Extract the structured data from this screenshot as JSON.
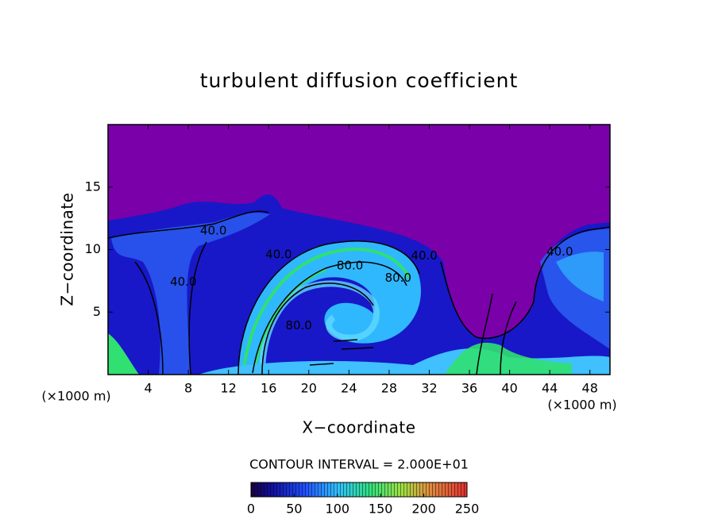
{
  "chart_data": {
    "type": "contour",
    "title": "turbulent diffusion coefficient",
    "xlabel": "X−coordinate",
    "ylabel": "Z−coordinate",
    "x_unit_left": "(×1000 m)",
    "x_unit_right": "(×1000 m)",
    "xlim": [
      0,
      50
    ],
    "ylim": [
      0,
      20
    ],
    "xticks": [
      4,
      8,
      12,
      16,
      20,
      24,
      28,
      32,
      36,
      40,
      44,
      48
    ],
    "yticks": [
      5,
      10,
      15
    ],
    "contour_labels": [
      {
        "text": "40.0",
        "x": 10.5,
        "z": 11.5
      },
      {
        "text": "40.0",
        "x": 17,
        "z": 9.6
      },
      {
        "text": "40.0",
        "x": 7.5,
        "z": 7.4
      },
      {
        "text": "80.0",
        "x": 24.1,
        "z": 8.7
      },
      {
        "text": "80.0",
        "x": 28.9,
        "z": 7.7
      },
      {
        "text": "40.0",
        "x": 31.5,
        "z": 9.5
      },
      {
        "text": "40.0",
        "x": 45,
        "z": 9.8
      },
      {
        "text": "80.0",
        "x": 19,
        "z": 3.9
      }
    ],
    "contour_interval_label": "CONTOUR INTERVAL = 2.000E+01",
    "colorbar_lim": [
      0,
      250
    ],
    "colorbar_ticks": [
      0,
      50,
      100,
      150,
      200,
      250
    ]
  }
}
